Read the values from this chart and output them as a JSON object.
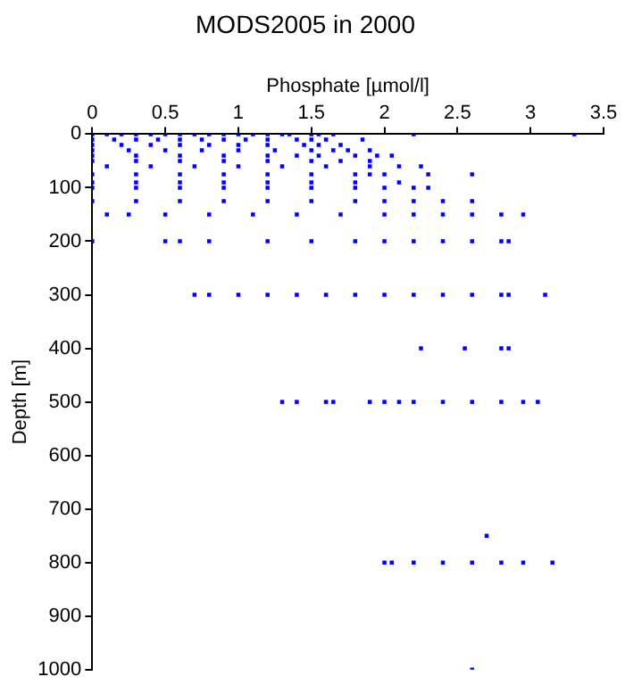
{
  "chart_data": {
    "type": "scatter",
    "title": "MODS2005 in 2000",
    "xlabel": "Phosphate [µmol/l]",
    "ylabel": "Depth [m]",
    "xlim": [
      0,
      3.5
    ],
    "xticks": [
      0,
      0.5,
      1,
      1.5,
      2,
      2.5,
      3,
      3.5
    ],
    "ylim": [
      1000,
      0
    ],
    "yticks": [
      0,
      100,
      200,
      300,
      400,
      500,
      600,
      700,
      800,
      900,
      1000
    ],
    "grid": false,
    "legend": false,
    "marker": "square",
    "series": [
      {
        "color": "#0000ff",
        "x": [
          0,
          0.1,
          0.2,
          0.3,
          0.4,
          0.5,
          0.6,
          0.7,
          0.8,
          0.9,
          1.0,
          1.1,
          1.2,
          1.3,
          1.35,
          1.5,
          1.55,
          1.65,
          2.2,
          3.3,
          0,
          0.15,
          0.3,
          0.45,
          0.6,
          0.75,
          0.9,
          1.05,
          1.2,
          1.4,
          1.5,
          1.6,
          1.85,
          0,
          0.2,
          0.4,
          0.6,
          0.8,
          1.0,
          1.2,
          1.45,
          1.55,
          1.7,
          0,
          0.25,
          0.5,
          0.75,
          1.0,
          1.25,
          1.5,
          1.65,
          1.75,
          1.9,
          0,
          0.3,
          0.6,
          0.9,
          1.2,
          1.4,
          1.55,
          1.8,
          1.95,
          2.05,
          0,
          0.3,
          0.6,
          0.9,
          1.2,
          1.5,
          1.7,
          1.9,
          0.1,
          0.4,
          0.7,
          1.0,
          1.3,
          1.6,
          1.9,
          2.1,
          2.25,
          0,
          0.3,
          0.6,
          0.9,
          1.2,
          1.5,
          1.8,
          1.9,
          2.0,
          2.3,
          2.6,
          0,
          0.3,
          0.6,
          0.9,
          1.2,
          1.5,
          1.8,
          2.1,
          0,
          0.3,
          0.6,
          0.9,
          1.2,
          1.5,
          1.8,
          2.0,
          2.2,
          2.3,
          0,
          0.3,
          0.6,
          0.9,
          1.2,
          1.5,
          1.8,
          2.0,
          2.2,
          2.4,
          2.6,
          0.1,
          0.25,
          0.5,
          0.8,
          1.1,
          1.4,
          1.7,
          2.0,
          2.2,
          2.4,
          2.6,
          2.8,
          2.95,
          0,
          0.5,
          0.6,
          0.8,
          1.2,
          1.5,
          1.8,
          2.0,
          2.2,
          2.4,
          2.6,
          2.8,
          2.85,
          0.7,
          0.8,
          1.0,
          1.2,
          1.4,
          1.6,
          1.8,
          2.0,
          2.2,
          2.4,
          2.6,
          2.8,
          2.85,
          3.1,
          2.25,
          2.55,
          2.8,
          2.85,
          1.3,
          1.4,
          1.6,
          1.65,
          1.9,
          2.0,
          2.1,
          2.2,
          2.4,
          2.6,
          2.8,
          2.95,
          3.05,
          2.7,
          2.0,
          2.05,
          2.2,
          2.4,
          2.6,
          2.8,
          2.95,
          3.15,
          2.6
        ],
        "values": [
          0,
          0,
          0,
          0,
          0,
          0,
          0,
          0,
          0,
          0,
          0,
          0,
          0,
          0,
          0,
          0,
          0,
          0,
          0,
          0,
          10,
          10,
          10,
          10,
          10,
          10,
          10,
          10,
          10,
          10,
          10,
          10,
          10,
          20,
          20,
          20,
          20,
          20,
          20,
          20,
          20,
          20,
          20,
          30,
          30,
          30,
          30,
          30,
          30,
          30,
          30,
          30,
          30,
          40,
          40,
          40,
          40,
          40,
          40,
          40,
          40,
          40,
          40,
          50,
          50,
          50,
          50,
          50,
          50,
          50,
          50,
          60,
          60,
          60,
          60,
          60,
          60,
          60,
          60,
          60,
          75,
          75,
          75,
          75,
          75,
          75,
          75,
          75,
          75,
          75,
          75,
          90,
          90,
          90,
          90,
          90,
          90,
          90,
          90,
          100,
          100,
          100,
          100,
          100,
          100,
          100,
          100,
          100,
          100,
          125,
          125,
          125,
          125,
          125,
          125,
          125,
          125,
          125,
          125,
          125,
          150,
          150,
          150,
          150,
          150,
          150,
          150,
          150,
          150,
          150,
          150,
          150,
          150,
          200,
          200,
          200,
          200,
          200,
          200,
          200,
          200,
          200,
          200,
          200,
          200,
          200,
          300,
          300,
          300,
          300,
          300,
          300,
          300,
          300,
          300,
          300,
          300,
          300,
          300,
          300,
          400,
          400,
          400,
          400,
          500,
          500,
          500,
          500,
          500,
          500,
          500,
          500,
          500,
          500,
          500,
          500,
          500,
          750,
          800,
          800,
          800,
          800,
          800,
          800,
          800,
          800,
          1000
        ]
      }
    ]
  }
}
